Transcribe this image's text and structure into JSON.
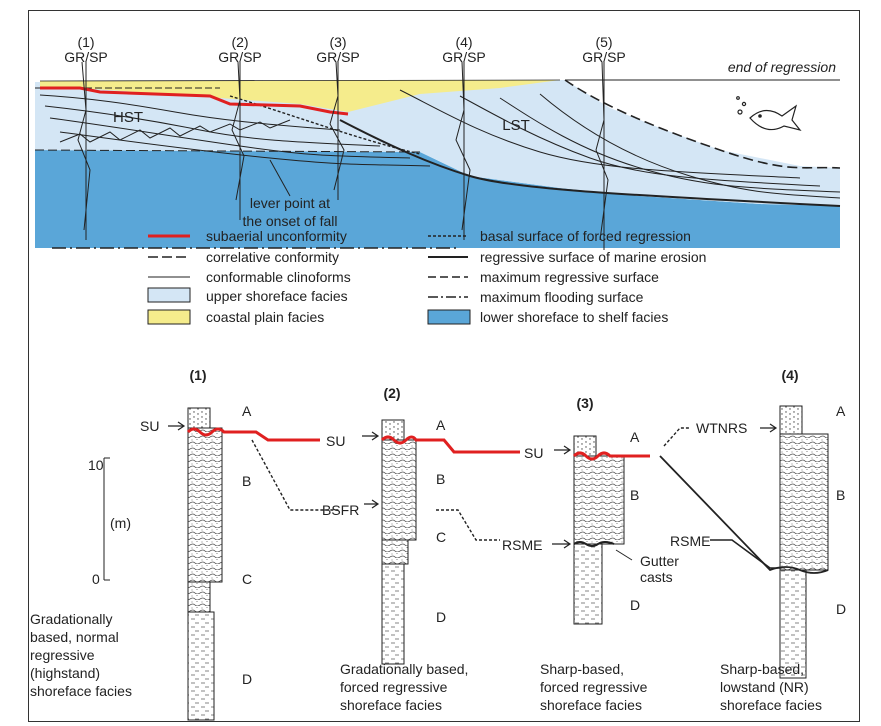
{
  "colors": {
    "subaerial_unconformity": "#e02020",
    "upper_shoreface": "#d4e6f5",
    "coastal_plain": "#f5ec8c",
    "lower_shoreface": "#5aa6d8",
    "line": "#222222"
  },
  "cross_section": {
    "end_label": "end of regression",
    "hst_label": "HST",
    "lst_label": "LST",
    "lever_label_1": "lever point at",
    "lever_label_2": "the onset of fall",
    "wells": [
      {
        "num": "(1)",
        "log": "GR/SP"
      },
      {
        "num": "(2)",
        "log": "GR/SP"
      },
      {
        "num": "(3)",
        "log": "GR/SP"
      },
      {
        "num": "(4)",
        "log": "GR/SP"
      },
      {
        "num": "(5)",
        "log": "GR/SP"
      }
    ]
  },
  "legend": {
    "left": [
      {
        "label": "subaerial unconformity",
        "symbol": "red-line"
      },
      {
        "label": "correlative conformity",
        "symbol": "long-dash"
      },
      {
        "label": "conformable clinoforms",
        "symbol": "thin-line"
      },
      {
        "label": "upper shoreface facies",
        "symbol": "light-blue-box"
      },
      {
        "label": "coastal plain facies",
        "symbol": "yellow-box"
      }
    ],
    "right": [
      {
        "label": "basal surface of forced regression",
        "symbol": "short-dash"
      },
      {
        "label": "regressive surface of marine erosion",
        "symbol": "thick-line"
      },
      {
        "label": "maximum regressive surface",
        "symbol": "dash"
      },
      {
        "label": "maximum flooding surface",
        "symbol": "dash-dot"
      },
      {
        "label": "lower shoreface to shelf facies",
        "symbol": "blue-box"
      }
    ]
  },
  "scale": {
    "top": "10",
    "middle": "(m)",
    "bottom": "0"
  },
  "columns": [
    {
      "num": "(1)",
      "units": [
        "A",
        "B",
        "C",
        "D"
      ],
      "caption": [
        "Gradationally",
        "based, normal",
        "regressive",
        "(highstand)",
        "shoreface facies"
      ]
    },
    {
      "num": "(2)",
      "units": [
        "A",
        "B",
        "C",
        "D"
      ],
      "caption": [
        "Gradationally based,",
        "forced regressive",
        "shoreface facies"
      ]
    },
    {
      "num": "(3)",
      "units": [
        "A",
        "B",
        "D"
      ],
      "caption": [
        "Sharp-based,",
        "forced regressive",
        "shoreface facies"
      ]
    },
    {
      "num": "(4)",
      "units": [
        "A",
        "B",
        "D"
      ],
      "caption": [
        "Sharp-based,",
        "lowstand (NR)",
        "shoreface facies"
      ]
    }
  ],
  "correlation_labels": {
    "su": "SU",
    "bsfr": "BSFR",
    "rsme": "RSME",
    "wtnrs": "WTNRS",
    "gutter_1": "Gutter",
    "gutter_2": "casts"
  }
}
